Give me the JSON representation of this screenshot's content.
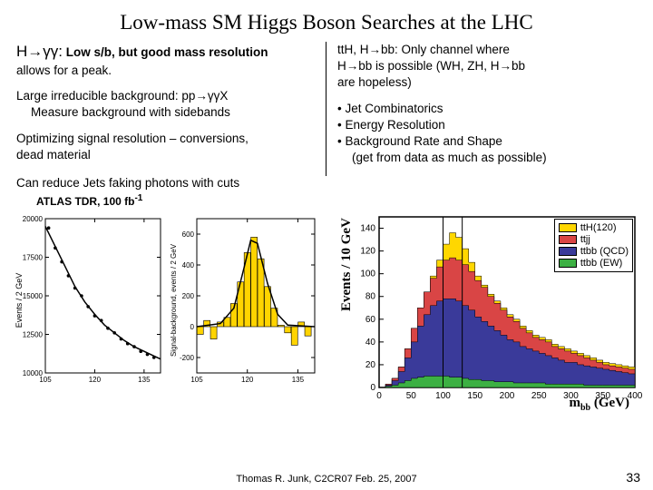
{
  "title": "Low-mass SM Higgs Boson Searches at the LHC",
  "left": {
    "h1a": "H→γγ:",
    "h1b": " Low s/b, but good mass resolution",
    "h1c": "allows for a peak.",
    "p2a": "Large irreducible background:  pp→γγX",
    "p2b": "Measure background with sidebands",
    "p3a": "Optimizing signal resolution – conversions,",
    "p3b": "dead material",
    "p4": "Can reduce Jets faking photons with cuts",
    "caption": "ATLAS TDR, 100 fb",
    "caption_sup": "-1"
  },
  "right": {
    "h1a": "ttH, H→bb:",
    "h1b": "  Only channel where",
    "h1c": "H→bb is possible (WH, ZH, H→bb",
    "h1d": "are hopeless)",
    "b1": "Jet Combinatorics",
    "b2": "Energy Resolution",
    "b3": "Background Rate and Shape",
    "b3b": "(get from data as much as possible)"
  },
  "chart1": {
    "ylabel": "Events / 2 GeV",
    "yticks": [
      "10000",
      "12500",
      "15000",
      "17500",
      "20000"
    ],
    "xticks": [
      "105",
      "120",
      "135"
    ],
    "xmin": 105,
    "xmax": 140,
    "ymin": 10000,
    "ymax": 20000,
    "line": [
      [
        105,
        19500
      ],
      [
        108,
        18200
      ],
      [
        111,
        16900
      ],
      [
        114,
        15600
      ],
      [
        117,
        14600
      ],
      [
        120,
        13800
      ],
      [
        123,
        13100
      ],
      [
        126,
        12600
      ],
      [
        129,
        12100
      ],
      [
        132,
        11700
      ],
      [
        135,
        11400
      ],
      [
        138,
        11100
      ],
      [
        140,
        10900
      ]
    ],
    "pts": [
      [
        106,
        19400
      ],
      [
        108,
        18100
      ],
      [
        110,
        17200
      ],
      [
        112,
        16300
      ],
      [
        114,
        15500
      ],
      [
        116,
        15000
      ],
      [
        118,
        14300
      ],
      [
        120,
        13700
      ],
      [
        122,
        13400
      ],
      [
        124,
        12900
      ],
      [
        126,
        12600
      ],
      [
        128,
        12200
      ],
      [
        130,
        11900
      ],
      [
        132,
        11700
      ],
      [
        134,
        11400
      ],
      [
        136,
        11200
      ],
      [
        138,
        11000
      ]
    ]
  },
  "chart2": {
    "ylabel": "Signal-background, events / 2 GeV",
    "yticks": [
      "-200",
      "0",
      "200",
      "400",
      "600"
    ],
    "xticks": [
      "105",
      "120",
      "135"
    ],
    "xmin": 105,
    "xmax": 140,
    "ymin": -300,
    "ymax": 700,
    "bars": [
      [
        106,
        -50
      ],
      [
        108,
        40
      ],
      [
        110,
        -80
      ],
      [
        112,
        30
      ],
      [
        114,
        60
      ],
      [
        116,
        150
      ],
      [
        118,
        290
      ],
      [
        120,
        480
      ],
      [
        122,
        580
      ],
      [
        124,
        440
      ],
      [
        126,
        260
      ],
      [
        128,
        120
      ],
      [
        130,
        10
      ],
      [
        132,
        -40
      ],
      [
        134,
        -120
      ],
      [
        136,
        30
      ],
      [
        138,
        -60
      ]
    ],
    "curve": [
      [
        105,
        0
      ],
      [
        112,
        20
      ],
      [
        116,
        120
      ],
      [
        119,
        380
      ],
      [
        121,
        560
      ],
      [
        123,
        540
      ],
      [
        126,
        280
      ],
      [
        129,
        80
      ],
      [
        132,
        10
      ],
      [
        140,
        0
      ]
    ],
    "bar_color": "#ffd400"
  },
  "chart3": {
    "ylabel": "Events / 10 GeV",
    "xlabel_a": "m",
    "xlabel_b": "bb",
    "xlabel_c": " (GeV)",
    "xticks": [
      "0",
      "50",
      "100",
      "150",
      "200",
      "250",
      "300",
      "350",
      "400"
    ],
    "yticks": [
      "0",
      "20",
      "40",
      "60",
      "80",
      "100",
      "120",
      "140"
    ],
    "xmin": 0,
    "xmax": 400,
    "ymin": 0,
    "ymax": 150,
    "legend": [
      {
        "label": "ttH(120)",
        "color": "#ffd700"
      },
      {
        "label": "ttjj",
        "color": "#d94545"
      },
      {
        "label": "ttbb (QCD)",
        "color": "#3a3a9a"
      },
      {
        "label": "ttbb (EW)",
        "color": "#3cb043"
      }
    ],
    "stack_ew": [
      0,
      1,
      2,
      4,
      6,
      8,
      9,
      10,
      10,
      10,
      10,
      9,
      9,
      8,
      7,
      7,
      6,
      6,
      5,
      5,
      5,
      4,
      4,
      4,
      4,
      4,
      3,
      3,
      3,
      3,
      3,
      3,
      2,
      2,
      2,
      2,
      2,
      2,
      2,
      2
    ],
    "stack_qcd": [
      0,
      2,
      6,
      14,
      26,
      40,
      54,
      64,
      72,
      76,
      78,
      78,
      76,
      72,
      68,
      62,
      58,
      54,
      50,
      46,
      42,
      40,
      36,
      34,
      32,
      30,
      28,
      26,
      24,
      22,
      22,
      20,
      19,
      18,
      17,
      16,
      15,
      14,
      13,
      12
    ],
    "stack_jj": [
      0,
      3,
      8,
      18,
      34,
      52,
      70,
      84,
      96,
      106,
      112,
      114,
      112,
      108,
      102,
      94,
      88,
      80,
      74,
      68,
      62,
      58,
      52,
      48,
      44,
      42,
      40,
      36,
      34,
      32,
      30,
      28,
      26,
      24,
      22,
      20,
      19,
      18,
      17,
      16
    ],
    "stack_h": [
      0,
      3,
      8,
      18,
      34,
      52,
      70,
      84,
      98,
      112,
      126,
      136,
      132,
      122,
      110,
      98,
      90,
      82,
      76,
      70,
      64,
      60,
      54,
      50,
      46,
      44,
      42,
      38,
      36,
      34,
      32,
      30,
      28,
      26,
      24,
      22,
      21,
      20,
      19,
      18
    ],
    "vline1": 100,
    "vline2": 130
  },
  "footer": "Thomas R. Junk, C2CR07 Feb. 25, 2007",
  "pagenum": "33"
}
